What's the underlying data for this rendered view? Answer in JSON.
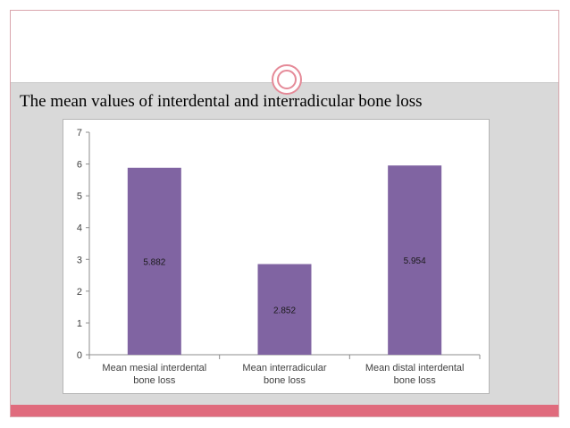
{
  "slide": {
    "title": "The mean values of interdental and interradicular bone loss",
    "colors": {
      "accent": "#e06b7d",
      "ornament": "#e58a98",
      "content_bg": "#d9d9d9"
    },
    "ornament_icon": "double-circle-icon"
  },
  "chart_data": {
    "type": "bar",
    "title": "",
    "xlabel": "",
    "ylabel": "",
    "categories": [
      "Mean mesial interdental bone loss",
      "Mean interradicular bone loss",
      "Mean distal interdental bone loss"
    ],
    "category_lines": [
      [
        "Mean mesial interdental",
        "bone loss"
      ],
      [
        "Mean interradicular",
        "bone loss"
      ],
      [
        "Mean distal interdental",
        "bone loss"
      ]
    ],
    "values": [
      5.882,
      2.852,
      5.954
    ],
    "data_labels": [
      "5.882",
      "2.852",
      "5.954"
    ],
    "ylim": [
      0,
      7
    ],
    "yticks": [
      0,
      1,
      2,
      3,
      4,
      5,
      6,
      7
    ],
    "grid": false,
    "legend": "none",
    "bar_color": "#8064a2"
  }
}
